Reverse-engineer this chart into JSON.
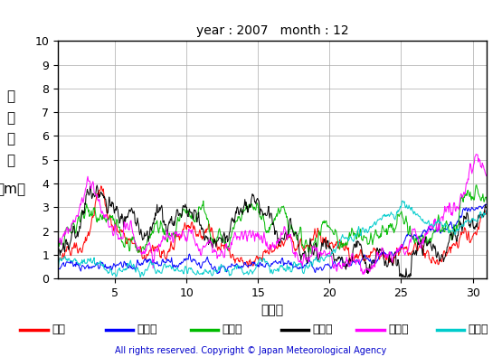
{
  "title": "year : 2007   month : 12",
  "xlabel": "（日）",
  "ylabel_chars": [
    "有",
    "義",
    "波",
    "高",
    "（m）"
  ],
  "xlim": [
    1,
    31
  ],
  "ylim": [
    0,
    10
  ],
  "yticks": [
    0,
    1,
    2,
    3,
    4,
    5,
    6,
    7,
    8,
    9,
    10
  ],
  "xticks": [
    5,
    10,
    15,
    20,
    25,
    30
  ],
  "grid_color": "#aaaaaa",
  "bg_color": "#ffffff",
  "copyright": "All rights reserved. Copyright © Japan Meteorological Agency",
  "legend": [
    {
      "label": "松前",
      "color": "#ff0000"
    },
    {
      "label": "江ノ島",
      "color": "#0000ff"
    },
    {
      "label": "石廂崎",
      "color": "#00bb00"
    },
    {
      "label": "経ヶ崎",
      "color": "#000000"
    },
    {
      "label": "福江島",
      "color": "#ff00ff"
    },
    {
      "label": "佐多崎",
      "color": "#00cccc"
    }
  ]
}
